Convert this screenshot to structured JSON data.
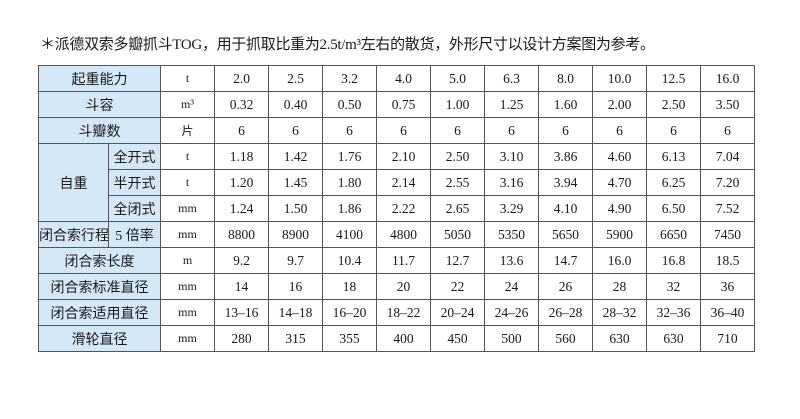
{
  "note": "＊派德双索多瓣抓斗TOG，用于抓取比重为2.5t/m³左右的散货，外形尺寸以设计方案图为参考。",
  "colors": {
    "header_fill": "#d5e8f7",
    "border": "#555555"
  },
  "table": {
    "rows": [
      {
        "label": "起重能力",
        "unit": "t",
        "values": [
          "2.0",
          "2.5",
          "3.2",
          "4.0",
          "5.0",
          "6.3",
          "8.0",
          "10.0",
          "12.5",
          "16.0"
        ]
      },
      {
        "label": "斗容",
        "unit": "m³",
        "values": [
          "0.32",
          "0.40",
          "0.50",
          "0.75",
          "1.00",
          "1.25",
          "1.60",
          "2.00",
          "2.50",
          "3.50"
        ]
      },
      {
        "label": "斗瓣数",
        "unit": "片",
        "values": [
          "6",
          "6",
          "6",
          "6",
          "6",
          "6",
          "6",
          "6",
          "6",
          "6"
        ]
      },
      {
        "group": "自重",
        "label": "全开式",
        "unit": "t",
        "values": [
          "1.18",
          "1.42",
          "1.76",
          "2.10",
          "2.50",
          "3.10",
          "3.86",
          "4.60",
          "6.13",
          "7.04"
        ]
      },
      {
        "label": "半开式",
        "unit": "t",
        "values": [
          "1.20",
          "1.45",
          "1.80",
          "2.14",
          "2.55",
          "3.16",
          "3.94",
          "4.70",
          "6.25",
          "7.20"
        ]
      },
      {
        "label": "全闭式",
        "unit": "mm",
        "values": [
          "1.24",
          "1.50",
          "1.86",
          "2.22",
          "2.65",
          "3.29",
          "4.10",
          "4.90",
          "6.50",
          "7.52"
        ]
      },
      {
        "group": "闭合索行程",
        "label": "5 倍率",
        "unit": "mm",
        "values": [
          "8800",
          "8900",
          "4100",
          "4800",
          "5050",
          "5350",
          "5650",
          "5900",
          "6650",
          "7450"
        ]
      },
      {
        "label": "闭合索长度",
        "unit": "m",
        "values": [
          "9.2",
          "9.7",
          "10.4",
          "11.7",
          "12.7",
          "13.6",
          "14.7",
          "16.0",
          "16.8",
          "18.5"
        ]
      },
      {
        "label": "闭合索标准直径",
        "unit": "mm",
        "values": [
          "14",
          "16",
          "18",
          "20",
          "22",
          "24",
          "26",
          "28",
          "32",
          "36"
        ]
      },
      {
        "label": "闭合索适用直径",
        "unit": "mm",
        "values": [
          "13–16",
          "14–18",
          "16–20",
          "18–22",
          "20–24",
          "24–26",
          "26–28",
          "28–32",
          "32–36",
          "36–40"
        ]
      },
      {
        "label": "滑轮直径",
        "unit": "mm",
        "values": [
          "280",
          "315",
          "355",
          "400",
          "450",
          "500",
          "560",
          "630",
          "630",
          "710"
        ]
      }
    ]
  }
}
